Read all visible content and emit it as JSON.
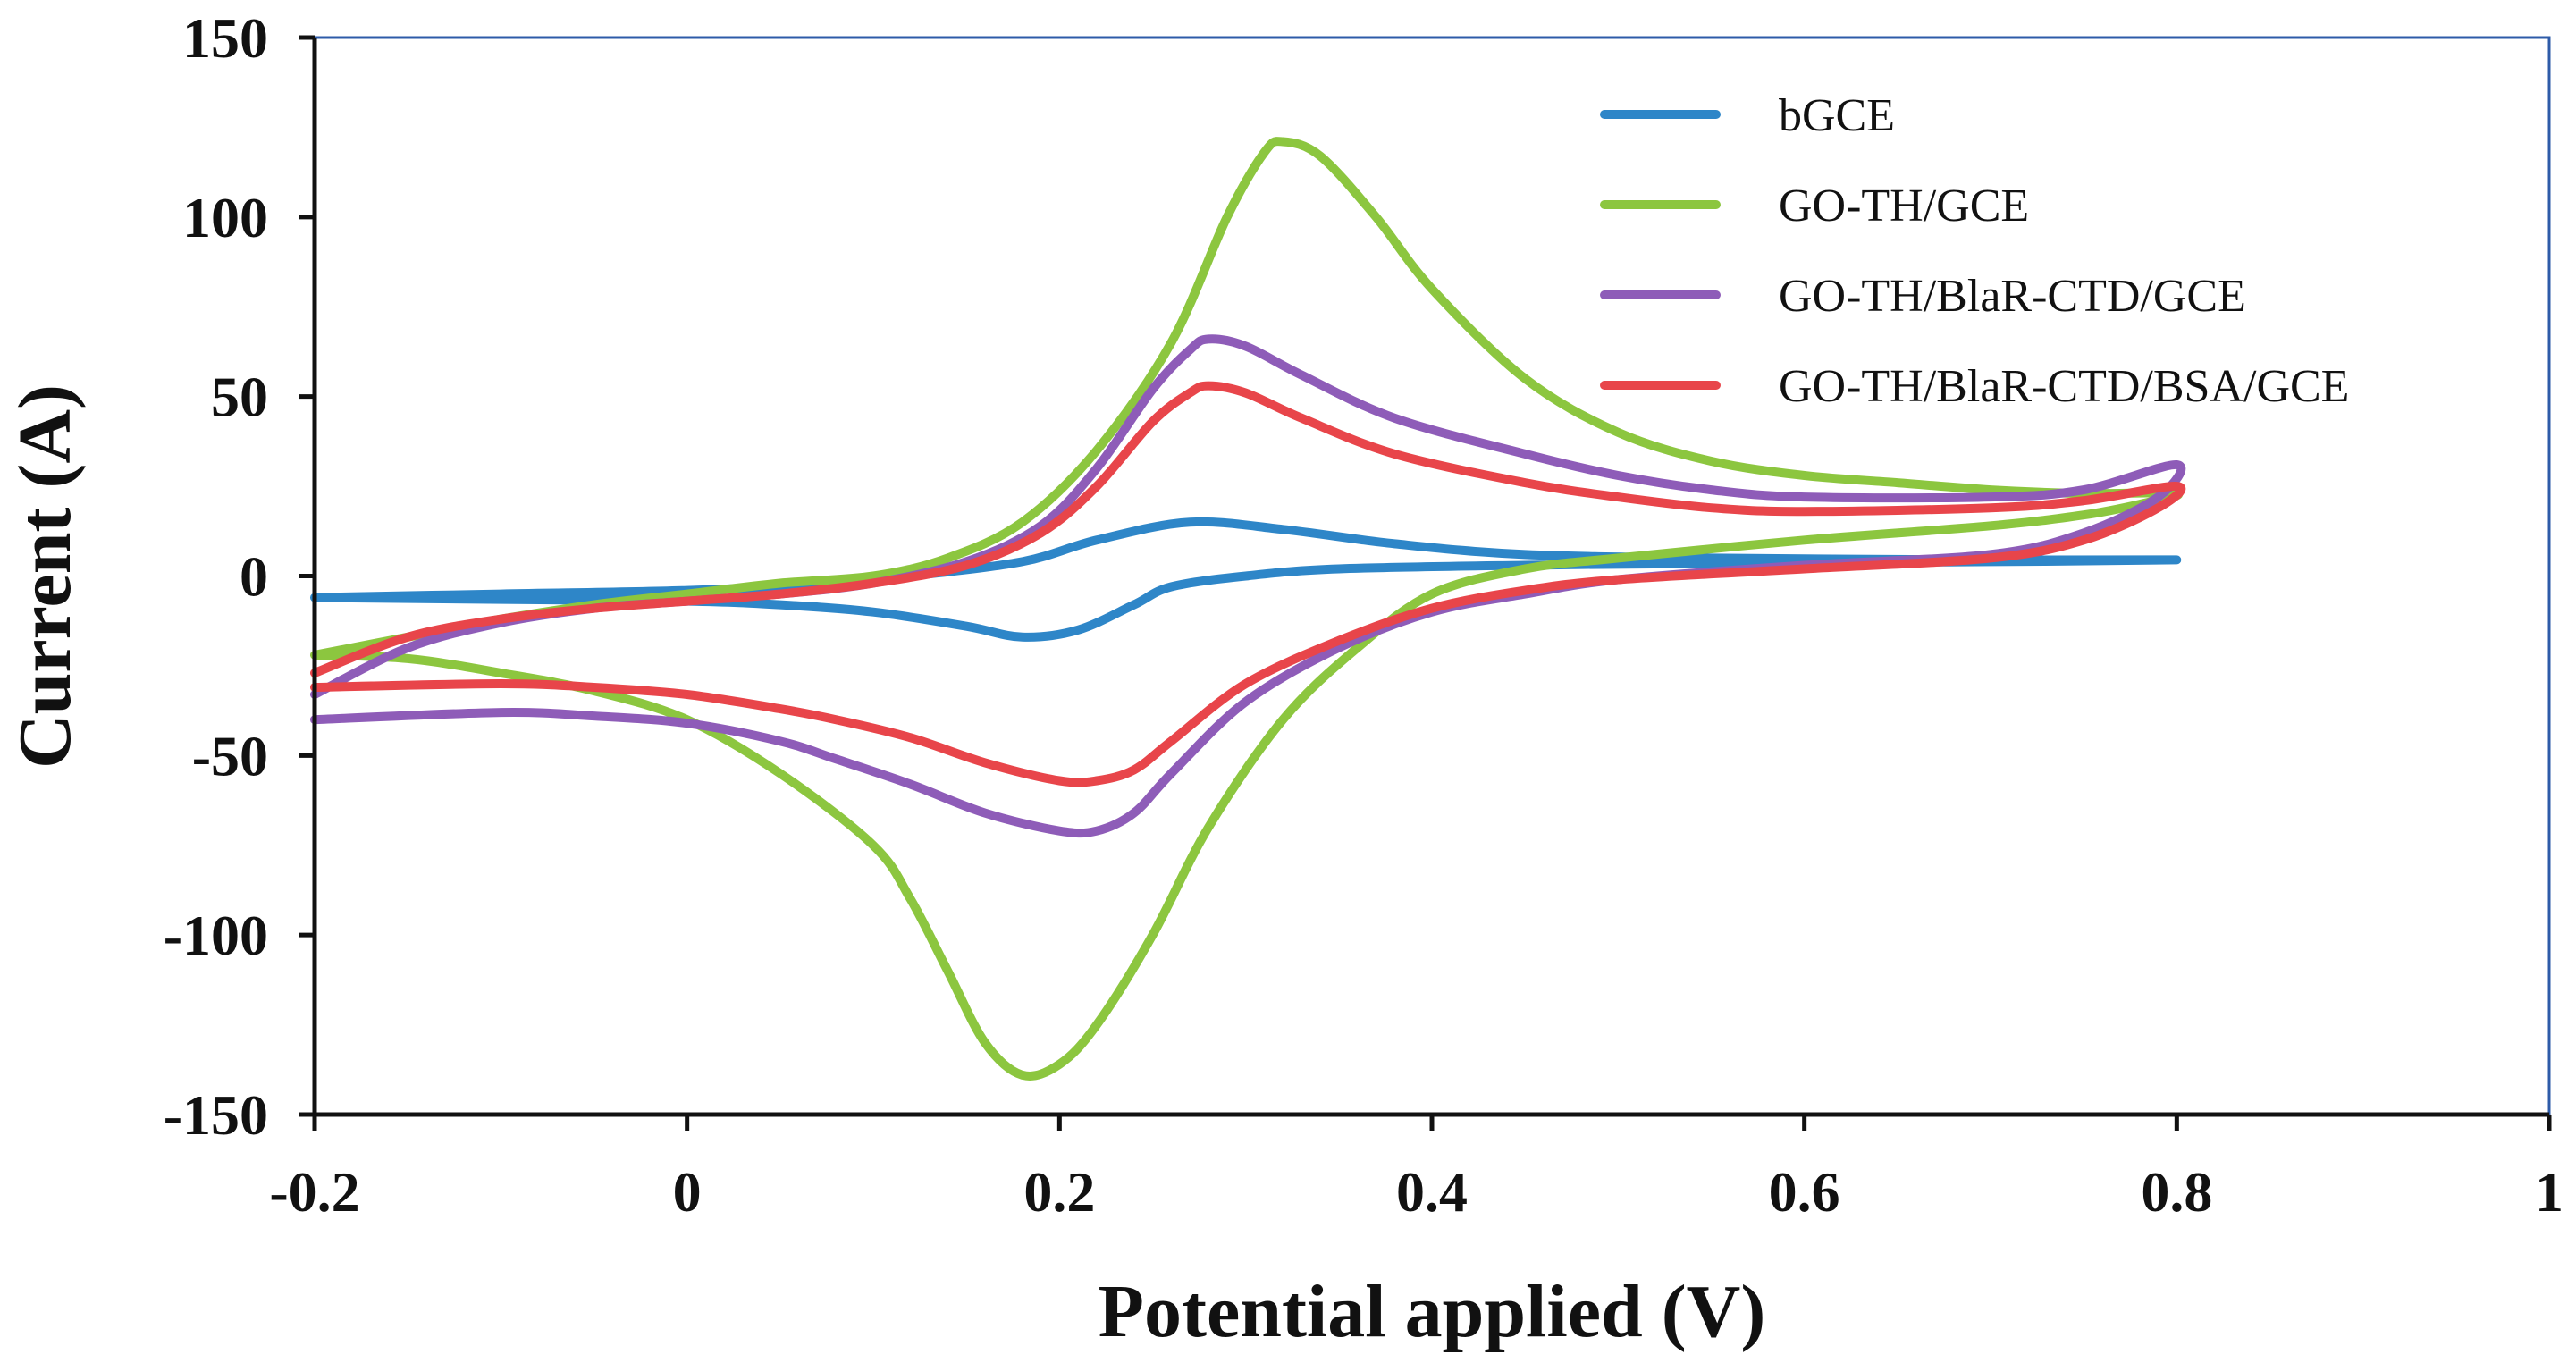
{
  "chart_data": {
    "type": "line",
    "title": "",
    "xlabel": "Potential applied (V)",
    "ylabel": "Current (A)",
    "xlim": [
      -0.2,
      1.0
    ],
    "ylim": [
      -150,
      150
    ],
    "x_ticks": [
      -0.2,
      0,
      0.2,
      0.4,
      0.6,
      0.8,
      1.0
    ],
    "x_tick_labels": [
      "-0.2",
      "0",
      "0.2",
      "0.4",
      "0.6",
      "0.8",
      "1"
    ],
    "y_ticks": [
      -150,
      -100,
      -50,
      0,
      50,
      100,
      150
    ],
    "y_tick_labels": [
      "-150",
      "-100",
      "-50",
      "0",
      "50",
      "100",
      "150"
    ],
    "grid": false,
    "legend_position": "top-right",
    "series": [
      {
        "name": "bGCE",
        "color": "#2E86C8",
        "points": [
          [
            -0.2,
            -6
          ],
          [
            -0.1,
            -5
          ],
          [
            0.0,
            -4
          ],
          [
            0.08,
            -2
          ],
          [
            0.12,
            0
          ],
          [
            0.18,
            4
          ],
          [
            0.22,
            10
          ],
          [
            0.27,
            15
          ],
          [
            0.32,
            13
          ],
          [
            0.38,
            9
          ],
          [
            0.45,
            6
          ],
          [
            0.55,
            5
          ],
          [
            0.7,
            4.5
          ],
          [
            0.8,
            4.5
          ],
          [
            0.7,
            4
          ],
          [
            0.55,
            3.5
          ],
          [
            0.45,
            3
          ],
          [
            0.35,
            2
          ],
          [
            0.3,
            0
          ],
          [
            0.26,
            -3
          ],
          [
            0.24,
            -8
          ],
          [
            0.21,
            -15
          ],
          [
            0.18,
            -17
          ],
          [
            0.15,
            -14
          ],
          [
            0.1,
            -10
          ],
          [
            0.05,
            -8
          ],
          [
            0.0,
            -7
          ],
          [
            -0.1,
            -6.5
          ],
          [
            -0.2,
            -6
          ]
        ]
      },
      {
        "name": "GO-TH/GCE",
        "color": "#8CC63F",
        "points": [
          [
            -0.2,
            -22
          ],
          [
            -0.15,
            -17
          ],
          [
            -0.1,
            -12
          ],
          [
            -0.05,
            -8
          ],
          [
            0.0,
            -5
          ],
          [
            0.05,
            -2
          ],
          [
            0.1,
            0
          ],
          [
            0.14,
            5
          ],
          [
            0.18,
            15
          ],
          [
            0.22,
            35
          ],
          [
            0.26,
            65
          ],
          [
            0.29,
            100
          ],
          [
            0.31,
            118
          ],
          [
            0.32,
            121
          ],
          [
            0.34,
            117
          ],
          [
            0.37,
            100
          ],
          [
            0.4,
            80
          ],
          [
            0.45,
            55
          ],
          [
            0.5,
            40
          ],
          [
            0.55,
            32
          ],
          [
            0.6,
            28
          ],
          [
            0.65,
            26
          ],
          [
            0.7,
            24
          ],
          [
            0.75,
            23
          ],
          [
            0.8,
            23
          ],
          [
            0.78,
            20
          ],
          [
            0.75,
            17
          ],
          [
            0.7,
            14
          ],
          [
            0.6,
            10
          ],
          [
            0.5,
            5
          ],
          [
            0.45,
            2
          ],
          [
            0.4,
            -5
          ],
          [
            0.36,
            -20
          ],
          [
            0.32,
            -40
          ],
          [
            0.28,
            -70
          ],
          [
            0.25,
            -100
          ],
          [
            0.22,
            -125
          ],
          [
            0.2,
            -136
          ],
          [
            0.18,
            -139
          ],
          [
            0.16,
            -130
          ],
          [
            0.14,
            -110
          ],
          [
            0.12,
            -90
          ],
          [
            0.1,
            -75
          ],
          [
            0.05,
            -55
          ],
          [
            0.0,
            -40
          ],
          [
            -0.05,
            -32
          ],
          [
            -0.1,
            -27
          ],
          [
            -0.15,
            -23
          ],
          [
            -0.2,
            -22
          ]
        ]
      },
      {
        "name": "GO-TH/BlaR-CTD/GCE",
        "color": "#8E5CB8",
        "points": [
          [
            -0.2,
            -33
          ],
          [
            -0.15,
            -20
          ],
          [
            -0.1,
            -13
          ],
          [
            -0.05,
            -9
          ],
          [
            0.0,
            -7
          ],
          [
            0.05,
            -5
          ],
          [
            0.1,
            -2
          ],
          [
            0.15,
            4
          ],
          [
            0.19,
            14
          ],
          [
            0.22,
            30
          ],
          [
            0.25,
            52
          ],
          [
            0.27,
            63
          ],
          [
            0.28,
            66
          ],
          [
            0.3,
            64
          ],
          [
            0.33,
            56
          ],
          [
            0.38,
            44
          ],
          [
            0.45,
            34
          ],
          [
            0.5,
            28
          ],
          [
            0.55,
            24
          ],
          [
            0.6,
            22
          ],
          [
            0.7,
            22
          ],
          [
            0.75,
            24
          ],
          [
            0.8,
            31
          ],
          [
            0.79,
            22
          ],
          [
            0.75,
            12
          ],
          [
            0.7,
            6
          ],
          [
            0.6,
            3
          ],
          [
            0.5,
            -1
          ],
          [
            0.45,
            -5
          ],
          [
            0.4,
            -10
          ],
          [
            0.35,
            -20
          ],
          [
            0.3,
            -35
          ],
          [
            0.26,
            -55
          ],
          [
            0.24,
            -66
          ],
          [
            0.22,
            -71
          ],
          [
            0.2,
            -71
          ],
          [
            0.16,
            -66
          ],
          [
            0.12,
            -58
          ],
          [
            0.08,
            -51
          ],
          [
            0.05,
            -46
          ],
          [
            0.0,
            -41
          ],
          [
            -0.05,
            -39
          ],
          [
            -0.1,
            -38
          ],
          [
            -0.2,
            -40
          ]
        ]
      },
      {
        "name": "GO-TH/BlaR-CTD/BSA/GCE",
        "color": "#E8454A",
        "points": [
          [
            -0.2,
            -27
          ],
          [
            -0.15,
            -17
          ],
          [
            -0.1,
            -12
          ],
          [
            -0.05,
            -9
          ],
          [
            0.0,
            -7
          ],
          [
            0.05,
            -5
          ],
          [
            0.1,
            -2
          ],
          [
            0.15,
            3
          ],
          [
            0.19,
            12
          ],
          [
            0.22,
            25
          ],
          [
            0.25,
            43
          ],
          [
            0.27,
            51
          ],
          [
            0.28,
            53
          ],
          [
            0.3,
            51
          ],
          [
            0.33,
            44
          ],
          [
            0.38,
            34
          ],
          [
            0.45,
            26
          ],
          [
            0.5,
            22
          ],
          [
            0.55,
            19
          ],
          [
            0.6,
            18
          ],
          [
            0.7,
            19
          ],
          [
            0.75,
            21
          ],
          [
            0.8,
            25
          ],
          [
            0.79,
            19
          ],
          [
            0.75,
            10
          ],
          [
            0.7,
            5
          ],
          [
            0.6,
            2
          ],
          [
            0.5,
            -1
          ],
          [
            0.45,
            -4
          ],
          [
            0.4,
            -9
          ],
          [
            0.35,
            -18
          ],
          [
            0.3,
            -30
          ],
          [
            0.26,
            -46
          ],
          [
            0.24,
            -54
          ],
          [
            0.22,
            -57
          ],
          [
            0.2,
            -57
          ],
          [
            0.16,
            -52
          ],
          [
            0.12,
            -45
          ],
          [
            0.08,
            -40
          ],
          [
            0.05,
            -37
          ],
          [
            0.0,
            -33
          ],
          [
            -0.05,
            -31
          ],
          [
            -0.1,
            -30
          ],
          [
            -0.2,
            -31
          ]
        ]
      }
    ]
  }
}
